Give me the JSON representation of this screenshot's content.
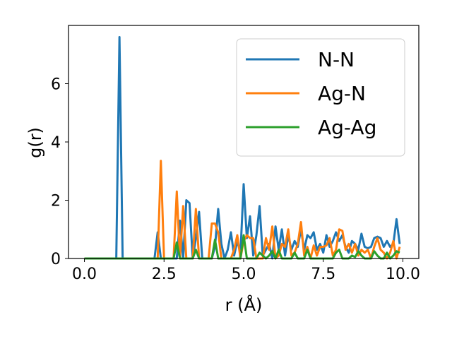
{
  "chart_data": {
    "type": "line",
    "title": "",
    "xlabel": "r (Å)",
    "ylabel": "g(r)",
    "xlim": [
      -0.5,
      10.5
    ],
    "ylim": [
      0,
      8
    ],
    "xticks": [
      0.0,
      2.5,
      5.0,
      7.5,
      10.0
    ],
    "xtick_labels": [
      "0.0",
      "2.5",
      "5.0",
      "7.5",
      "10.0"
    ],
    "yticks": [
      0,
      2,
      4,
      6
    ],
    "ytick_labels": [
      "0",
      "2",
      "4",
      "6"
    ],
    "grid": false,
    "legend_position": "top-right",
    "series": [
      {
        "name": "N-N",
        "color": "#1f77b4",
        "points": [
          [
            0.0,
            0
          ],
          [
            1.0,
            0
          ],
          [
            1.1,
            7.6
          ],
          [
            1.2,
            0
          ],
          [
            2.2,
            0
          ],
          [
            2.3,
            0.9
          ],
          [
            2.4,
            0
          ],
          [
            2.9,
            0
          ],
          [
            3.0,
            1.3
          ],
          [
            3.1,
            0
          ],
          [
            3.2,
            2.0
          ],
          [
            3.3,
            1.9
          ],
          [
            3.4,
            0
          ],
          [
            3.5,
            0.7
          ],
          [
            3.6,
            1.6
          ],
          [
            3.7,
            0
          ],
          [
            4.0,
            0
          ],
          [
            4.1,
            0.4
          ],
          [
            4.2,
            1.7
          ],
          [
            4.3,
            0.5
          ],
          [
            4.4,
            0
          ],
          [
            4.5,
            0.3
          ],
          [
            4.6,
            0.9
          ],
          [
            4.7,
            0.1
          ],
          [
            4.8,
            0.6
          ],
          [
            4.9,
            0.2
          ],
          [
            5.0,
            2.55
          ],
          [
            5.1,
            0.7
          ],
          [
            5.2,
            1.45
          ],
          [
            5.3,
            0.1
          ],
          [
            5.4,
            0.8
          ],
          [
            5.5,
            1.8
          ],
          [
            5.6,
            0.1
          ],
          [
            5.7,
            0.3
          ],
          [
            5.8,
            0.5
          ],
          [
            5.9,
            0
          ],
          [
            6.0,
            1.1
          ],
          [
            6.1,
            0.3
          ],
          [
            6.2,
            1.0
          ],
          [
            6.3,
            0.1
          ],
          [
            6.4,
            0.8
          ],
          [
            6.5,
            0.3
          ],
          [
            6.6,
            0.6
          ],
          [
            6.7,
            0.4
          ],
          [
            6.8,
            1.0
          ],
          [
            6.9,
            0.3
          ],
          [
            7.0,
            0.8
          ],
          [
            7.1,
            0.7
          ],
          [
            7.2,
            0.9
          ],
          [
            7.3,
            0.3
          ],
          [
            7.4,
            0.5
          ],
          [
            7.5,
            0.2
          ],
          [
            7.6,
            0.8
          ],
          [
            7.7,
            0.4
          ],
          [
            7.8,
            0.6
          ],
          [
            7.9,
            0.9
          ],
          [
            8.0,
            0.6
          ],
          [
            8.1,
            0.8
          ],
          [
            8.2,
            0.4
          ],
          [
            8.3,
            0.2
          ],
          [
            8.4,
            0.6
          ],
          [
            8.5,
            0.5
          ],
          [
            8.6,
            0.3
          ],
          [
            8.7,
            0.85
          ],
          [
            8.8,
            0.4
          ],
          [
            8.9,
            0.35
          ],
          [
            9.0,
            0.4
          ],
          [
            9.1,
            0.7
          ],
          [
            9.2,
            0.75
          ],
          [
            9.3,
            0.7
          ],
          [
            9.4,
            0.4
          ],
          [
            9.5,
            0.6
          ],
          [
            9.6,
            0.4
          ],
          [
            9.7,
            0.5
          ],
          [
            9.8,
            1.35
          ],
          [
            9.9,
            0.5
          ]
        ]
      },
      {
        "name": "Ag-N",
        "color": "#ff7f0e",
        "points": [
          [
            0.0,
            0
          ],
          [
            2.3,
            0
          ],
          [
            2.4,
            3.35
          ],
          [
            2.5,
            0
          ],
          [
            2.8,
            0
          ],
          [
            2.9,
            2.3
          ],
          [
            3.0,
            0
          ],
          [
            3.1,
            1.8
          ],
          [
            3.2,
            0
          ],
          [
            3.4,
            0
          ],
          [
            3.5,
            1.7
          ],
          [
            3.6,
            0
          ],
          [
            3.9,
            0
          ],
          [
            4.0,
            1.2
          ],
          [
            4.1,
            1.2
          ],
          [
            4.2,
            0.9
          ],
          [
            4.3,
            0
          ],
          [
            4.6,
            0
          ],
          [
            4.7,
            0.3
          ],
          [
            4.8,
            0.8
          ],
          [
            4.9,
            0
          ],
          [
            5.0,
            0.6
          ],
          [
            5.1,
            0.8
          ],
          [
            5.2,
            0.7
          ],
          [
            5.3,
            0.7
          ],
          [
            5.4,
            0
          ],
          [
            5.6,
            0
          ],
          [
            5.7,
            0.7
          ],
          [
            5.8,
            0.3
          ],
          [
            5.9,
            1.1
          ],
          [
            6.0,
            0
          ],
          [
            6.1,
            0.1
          ],
          [
            6.2,
            0.5
          ],
          [
            6.3,
            0.4
          ],
          [
            6.4,
            1.0
          ],
          [
            6.5,
            0.1
          ],
          [
            6.6,
            0.2
          ],
          [
            6.7,
            0.5
          ],
          [
            6.8,
            1.25
          ],
          [
            6.9,
            0.1
          ],
          [
            7.0,
            0.4
          ],
          [
            7.1,
            0
          ],
          [
            7.2,
            0.45
          ],
          [
            7.3,
            0.1
          ],
          [
            7.4,
            0.4
          ],
          [
            7.5,
            0.4
          ],
          [
            7.6,
            0.45
          ],
          [
            7.7,
            0.7
          ],
          [
            7.8,
            0.1
          ],
          [
            7.9,
            0.3
          ],
          [
            8.0,
            1.0
          ],
          [
            8.1,
            0.95
          ],
          [
            8.2,
            0.3
          ],
          [
            8.3,
            0.5
          ],
          [
            8.4,
            0.2
          ],
          [
            8.5,
            0.5
          ],
          [
            8.6,
            0.1
          ],
          [
            8.7,
            0.3
          ],
          [
            8.8,
            0.2
          ],
          [
            8.9,
            0.3
          ],
          [
            9.0,
            0
          ],
          [
            9.1,
            0.4
          ],
          [
            9.2,
            0.7
          ],
          [
            9.3,
            0.3
          ],
          [
            9.4,
            0.2
          ],
          [
            9.5,
            0
          ],
          [
            9.6,
            0.2
          ],
          [
            9.7,
            0.6
          ],
          [
            9.8,
            0
          ],
          [
            9.9,
            0.4
          ]
        ]
      },
      {
        "name": "Ag-Ag",
        "color": "#2ca02c",
        "points": [
          [
            0.0,
            0
          ],
          [
            2.8,
            0
          ],
          [
            2.9,
            0.55
          ],
          [
            3.0,
            0
          ],
          [
            3.4,
            0
          ],
          [
            3.5,
            0.3
          ],
          [
            3.6,
            0
          ],
          [
            4.0,
            0
          ],
          [
            4.1,
            0.65
          ],
          [
            4.2,
            0
          ],
          [
            4.9,
            0
          ],
          [
            5.0,
            0.8
          ],
          [
            5.1,
            0
          ],
          [
            5.4,
            0
          ],
          [
            5.5,
            0.2
          ],
          [
            5.6,
            0.1
          ],
          [
            5.7,
            0
          ],
          [
            5.8,
            0.1
          ],
          [
            5.9,
            0.25
          ],
          [
            6.0,
            0
          ],
          [
            6.1,
            0.3
          ],
          [
            6.2,
            0
          ],
          [
            6.5,
            0
          ],
          [
            6.6,
            0.2
          ],
          [
            6.7,
            0
          ],
          [
            6.9,
            0
          ],
          [
            7.0,
            0.3
          ],
          [
            7.1,
            0
          ],
          [
            7.8,
            0
          ],
          [
            7.9,
            0.2
          ],
          [
            8.0,
            0.3
          ],
          [
            8.1,
            0
          ],
          [
            8.3,
            0
          ],
          [
            8.4,
            0.1
          ],
          [
            8.5,
            0.05
          ],
          [
            8.6,
            0.25
          ],
          [
            8.7,
            0.1
          ],
          [
            8.8,
            0
          ],
          [
            9.0,
            0
          ],
          [
            9.1,
            0.25
          ],
          [
            9.2,
            0.1
          ],
          [
            9.3,
            0
          ],
          [
            9.4,
            0
          ],
          [
            9.5,
            0.2
          ],
          [
            9.6,
            0
          ],
          [
            9.7,
            0.1
          ],
          [
            9.8,
            0.25
          ],
          [
            9.9,
            0.2
          ]
        ]
      }
    ]
  }
}
